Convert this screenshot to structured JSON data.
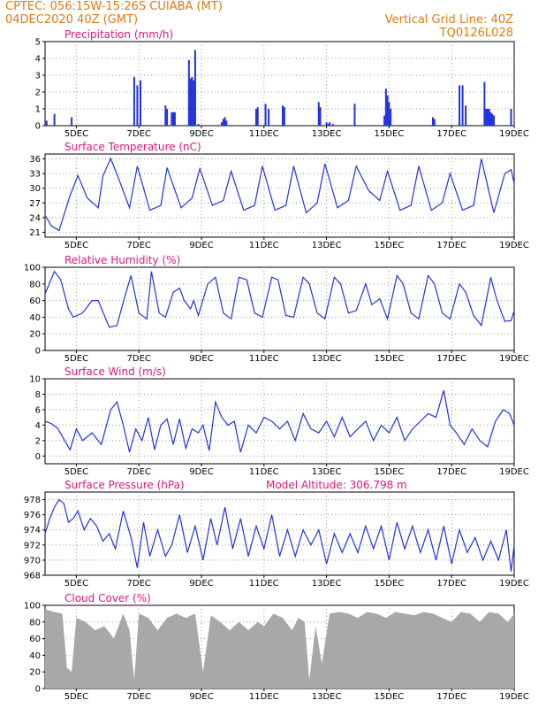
{
  "header": {
    "line1_left": "CPTEC:    056:15W-15:26S    CUIABA (MT)",
    "line2_left": "04DEC2020 40Z (GMT)",
    "line1_right": "Vertical Grid Line: 40Z",
    "line2_right": "TQ0126L028"
  },
  "colors": {
    "header": "#e07a12",
    "title": "#e0177a",
    "line": "#2233dd",
    "bar": "#2233dd",
    "cloud": "#a8a8a8"
  },
  "x_axis": {
    "range": [
      4.0,
      19.0
    ],
    "ticks": [
      5,
      7,
      9,
      11,
      13,
      15,
      17,
      19
    ],
    "tick_labels": [
      "5DEC",
      "7DEC",
      "9DEC",
      "11DEC",
      "13DEC",
      "15DEC",
      "17DEC",
      "19DEC"
    ]
  },
  "chart_data": [
    {
      "type": "bar",
      "title": "Precipitation  (mm/h)",
      "ylim": [
        0,
        5
      ],
      "yticks": [
        0,
        1,
        2,
        3,
        4,
        5
      ],
      "x": [
        4.05,
        4.3,
        4.85,
        6.85,
        6.95,
        7.05,
        7.85,
        7.9,
        8.05,
        8.1,
        8.15,
        8.6,
        8.65,
        8.7,
        8.75,
        8.8,
        8.9,
        9.65,
        9.7,
        9.75,
        9.8,
        10.75,
        10.8,
        11.05,
        11.15,
        11.6,
        11.65,
        12.75,
        12.8,
        13.0,
        13.05,
        13.1,
        13.2,
        13.9,
        14.85,
        14.9,
        14.95,
        15.0,
        15.05,
        16.4,
        16.45,
        17.25,
        17.35,
        17.45,
        18.05,
        18.1,
        18.15,
        18.2,
        18.25,
        18.3,
        18.35,
        18.9
      ],
      "values": [
        0.3,
        0.7,
        0.5,
        2.9,
        2.4,
        2.7,
        1.2,
        1.0,
        0.8,
        0.8,
        0.8,
        3.9,
        2.8,
        2.9,
        2.7,
        4.5,
        0.1,
        0.2,
        0.4,
        0.5,
        0.3,
        1.0,
        1.1,
        1.3,
        1.0,
        1.2,
        1.1,
        1.4,
        1.1,
        0.2,
        0.1,
        0.2,
        0.1,
        1.3,
        0.6,
        2.2,
        1.8,
        1.4,
        1.0,
        0.5,
        0.4,
        2.4,
        2.4,
        1.2,
        2.6,
        1.0,
        1.0,
        1.0,
        0.8,
        0.7,
        0.6,
        1.0
      ]
    },
    {
      "type": "line",
      "title": "Surface Temperature  (nC)",
      "ylim": [
        20,
        37
      ],
      "yticks": [
        21,
        24,
        27,
        30,
        33,
        36
      ],
      "x": [
        4.0,
        4.2,
        4.45,
        4.8,
        5.05,
        5.35,
        5.7,
        5.85,
        6.1,
        6.35,
        6.7,
        6.95,
        7.35,
        7.7,
        7.9,
        8.35,
        8.7,
        8.95,
        9.35,
        9.7,
        9.95,
        10.35,
        10.7,
        10.95,
        11.35,
        11.7,
        11.95,
        12.35,
        12.7,
        12.95,
        13.35,
        13.7,
        13.95,
        14.35,
        14.7,
        14.95,
        15.35,
        15.7,
        15.95,
        16.35,
        16.7,
        16.95,
        17.35,
        17.7,
        17.95,
        18.35,
        18.7,
        18.9,
        19.0
      ],
      "values": [
        24.5,
        22.3,
        21.4,
        28.5,
        32.6,
        28.0,
        26.0,
        32.5,
        36.1,
        32.0,
        26.0,
        34.5,
        25.5,
        26.5,
        34.2,
        26.0,
        28.0,
        34.0,
        26.5,
        27.5,
        33.5,
        25.5,
        26.5,
        34.5,
        25.5,
        26.5,
        34.5,
        25.0,
        27.0,
        35.0,
        26.0,
        27.5,
        34.5,
        29.5,
        27.5,
        33.5,
        25.5,
        26.5,
        34.5,
        25.5,
        27.0,
        33.0,
        25.5,
        26.5,
        36.0,
        25.0,
        33.0,
        33.8,
        31.0
      ]
    },
    {
      "type": "line",
      "title": "Relative Humidity  (%)",
      "ylim": [
        0,
        100
      ],
      "yticks": [
        0,
        20,
        40,
        60,
        80,
        100
      ],
      "x": [
        4.0,
        4.3,
        4.5,
        4.75,
        4.9,
        5.2,
        5.5,
        5.7,
        6.05,
        6.3,
        6.55,
        6.75,
        7.0,
        7.25,
        7.4,
        7.65,
        7.85,
        8.1,
        8.3,
        8.45,
        8.55,
        8.65,
        8.75,
        8.9,
        9.2,
        9.45,
        9.7,
        9.95,
        10.2,
        10.45,
        10.7,
        10.95,
        11.25,
        11.45,
        11.7,
        11.95,
        12.25,
        12.45,
        12.7,
        12.95,
        13.25,
        13.45,
        13.7,
        13.95,
        14.25,
        14.45,
        14.7,
        14.95,
        15.25,
        15.45,
        15.7,
        15.95,
        16.25,
        16.45,
        16.7,
        16.95,
        17.25,
        17.45,
        17.7,
        17.95,
        18.25,
        18.45,
        18.7,
        18.9,
        19.0
      ],
      "values": [
        68,
        95,
        85,
        50,
        40,
        45,
        60,
        60,
        28,
        30,
        65,
        90,
        45,
        38,
        95,
        45,
        40,
        70,
        75,
        60,
        55,
        50,
        60,
        42,
        80,
        88,
        45,
        38,
        88,
        85,
        45,
        40,
        88,
        85,
        42,
        40,
        88,
        80,
        45,
        38,
        88,
        80,
        45,
        48,
        80,
        55,
        62,
        38,
        90,
        80,
        45,
        38,
        90,
        80,
        45,
        38,
        80,
        70,
        42,
        30,
        88,
        60,
        35,
        36,
        48
      ]
    },
    {
      "type": "line",
      "title": "Surface Wind  (m/s)",
      "ylim": [
        -1,
        10
      ],
      "yticks": [
        0,
        2,
        4,
        6,
        8,
        10
      ],
      "x": [
        4.0,
        4.2,
        4.4,
        4.6,
        4.8,
        5.0,
        5.2,
        5.5,
        5.8,
        6.1,
        6.3,
        6.5,
        6.7,
        6.9,
        7.1,
        7.3,
        7.5,
        7.7,
        7.9,
        8.1,
        8.3,
        8.5,
        8.7,
        8.9,
        9.05,
        9.25,
        9.45,
        9.65,
        9.85,
        10.05,
        10.25,
        10.5,
        10.75,
        11.0,
        11.25,
        11.5,
        11.75,
        12.0,
        12.25,
        12.5,
        12.75,
        13.0,
        13.25,
        13.5,
        13.75,
        14.0,
        14.25,
        14.5,
        14.75,
        15.0,
        15.25,
        15.5,
        15.75,
        16.0,
        16.25,
        16.5,
        16.75,
        16.95,
        17.15,
        17.4,
        17.65,
        17.9,
        18.15,
        18.4,
        18.65,
        18.85,
        19.0
      ],
      "values": [
        4.5,
        4.2,
        3.6,
        2.2,
        0.8,
        3.5,
        2.0,
        3.0,
        1.5,
        6.0,
        7.0,
        4.0,
        0.5,
        3.5,
        2.0,
        5.0,
        0.8,
        4.0,
        4.8,
        1.5,
        4.8,
        1.0,
        3.5,
        3.0,
        4.0,
        0.7,
        7.0,
        5.0,
        4.0,
        4.5,
        0.5,
        4.0,
        3.0,
        5.0,
        4.5,
        3.5,
        4.5,
        2.0,
        5.5,
        3.5,
        3.0,
        4.5,
        2.5,
        5.0,
        2.5,
        3.5,
        4.5,
        2.0,
        4.0,
        3.0,
        5.0,
        2.0,
        3.5,
        4.5,
        5.5,
        5.0,
        8.5,
        4.0,
        3.0,
        1.5,
        3.5,
        2.0,
        1.2,
        4.5,
        6.0,
        5.5,
        4.0
      ]
    },
    {
      "type": "line",
      "title": "Surface Pressure  (hPa)",
      "annotation": "Model Altitude: 306.798  m",
      "ylim": [
        968,
        979
      ],
      "yticks": [
        968,
        970,
        972,
        974,
        976,
        978
      ],
      "x": [
        4.0,
        4.15,
        4.3,
        4.45,
        4.6,
        4.75,
        4.9,
        5.05,
        5.25,
        5.45,
        5.65,
        5.85,
        6.05,
        6.25,
        6.5,
        6.75,
        6.95,
        7.15,
        7.35,
        7.6,
        7.85,
        8.05,
        8.3,
        8.55,
        8.8,
        9.05,
        9.3,
        9.5,
        9.75,
        10.0,
        10.25,
        10.5,
        10.75,
        11.0,
        11.25,
        11.5,
        11.75,
        12.0,
        12.25,
        12.5,
        12.75,
        13.0,
        13.25,
        13.5,
        13.75,
        14.0,
        14.25,
        14.5,
        14.75,
        15.0,
        15.25,
        15.5,
        15.75,
        16.0,
        16.25,
        16.5,
        16.75,
        17.0,
        17.25,
        17.5,
        17.75,
        18.0,
        18.25,
        18.5,
        18.75,
        18.9,
        19.0
      ],
      "values": [
        973.5,
        975.5,
        977.0,
        978.0,
        977.5,
        975.0,
        975.5,
        976.5,
        974.0,
        975.5,
        974.5,
        972.5,
        973.5,
        971.5,
        976.5,
        973.0,
        969.0,
        975.0,
        970.5,
        974.0,
        970.5,
        972.0,
        976.0,
        971.0,
        974.5,
        970.0,
        975.5,
        972.0,
        977.0,
        971.5,
        975.5,
        970.5,
        974.5,
        971.5,
        976.0,
        970.5,
        974.0,
        970.5,
        974.0,
        972.0,
        974.0,
        969.5,
        973.5,
        971.0,
        973.5,
        971.0,
        974.5,
        971.5,
        974.5,
        970.0,
        975.0,
        971.5,
        974.5,
        971.0,
        974.0,
        970.0,
        974.5,
        969.5,
        974.0,
        971.0,
        973.0,
        970.0,
        972.5,
        970.0,
        974.0,
        968.5,
        972.0
      ]
    },
    {
      "type": "area",
      "title": "Cloud Cover  (%)",
      "ylim": [
        0,
        100
      ],
      "yticks": [
        0,
        20,
        40,
        60,
        80,
        100
      ],
      "x": [
        4.0,
        4.3,
        4.55,
        4.7,
        4.85,
        5.0,
        5.3,
        5.6,
        5.9,
        6.2,
        6.5,
        6.7,
        6.85,
        7.0,
        7.3,
        7.6,
        7.9,
        8.2,
        8.5,
        8.8,
        9.05,
        9.3,
        9.6,
        9.9,
        10.2,
        10.5,
        10.8,
        11.0,
        11.3,
        11.6,
        11.9,
        12.1,
        12.3,
        12.45,
        12.65,
        12.85,
        13.1,
        13.4,
        13.7,
        14.0,
        14.3,
        14.6,
        14.9,
        15.2,
        15.5,
        15.8,
        16.1,
        16.4,
        16.7,
        17.0,
        17.3,
        17.6,
        17.9,
        18.2,
        18.5,
        18.8,
        19.0
      ],
      "values": [
        95,
        92,
        90,
        25,
        20,
        85,
        80,
        70,
        75,
        60,
        90,
        70,
        10,
        90,
        85,
        70,
        85,
        90,
        85,
        90,
        20,
        88,
        80,
        70,
        80,
        70,
        80,
        75,
        90,
        85,
        70,
        85,
        80,
        10,
        75,
        30,
        90,
        92,
        90,
        85,
        92,
        90,
        85,
        92,
        90,
        88,
        92,
        90,
        85,
        80,
        92,
        90,
        80,
        92,
        90,
        80,
        90
      ]
    }
  ]
}
